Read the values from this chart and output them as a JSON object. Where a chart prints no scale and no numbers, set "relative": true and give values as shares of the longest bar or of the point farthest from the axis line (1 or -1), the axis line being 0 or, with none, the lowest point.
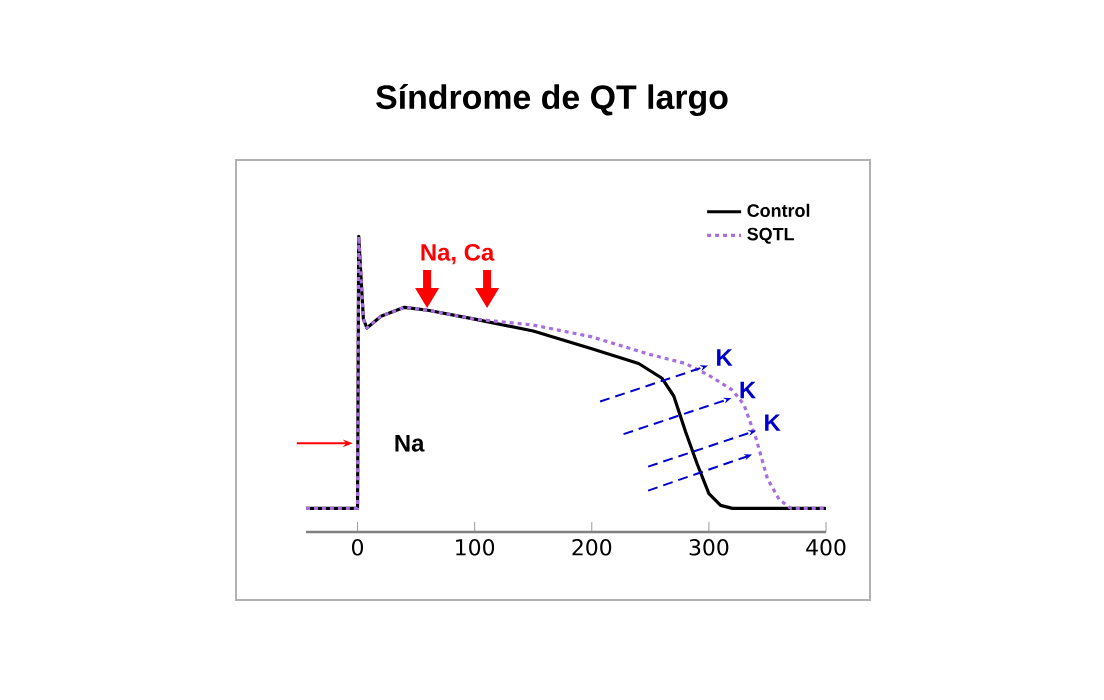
{
  "chart_data": {
    "type": "line",
    "title": "Síndrome de QT largo",
    "relative": true,
    "xlim": [
      -44,
      400
    ],
    "xticks": [
      0,
      100,
      200,
      300,
      400
    ],
    "legend": "top right",
    "series": [
      {
        "name": "Control",
        "color": "#000000",
        "line_style": "solid",
        "x": [
          -44,
          0,
          1,
          5,
          8,
          20,
          40,
          60,
          100,
          150,
          200,
          240,
          260,
          270,
          280,
          290,
          300,
          310,
          320,
          400
        ],
        "values": [
          0.08,
          0.08,
          1,
          0.72,
          0.69,
          0.73,
          0.76,
          0.75,
          0.72,
          0.68,
          0.62,
          0.57,
          0.52,
          0.46,
          0.34,
          0.23,
          0.13,
          0.09,
          0.08,
          0.08
        ]
      },
      {
        "name": "SQTL",
        "color": "#a66ee0",
        "line_style": "dotted",
        "x": [
          -44,
          0,
          1,
          5,
          8,
          20,
          40,
          60,
          100,
          150,
          200,
          250,
          280,
          300,
          320,
          330,
          340,
          350,
          360,
          370,
          400
        ],
        "values": [
          0.08,
          0.08,
          1,
          0.72,
          0.69,
          0.73,
          0.76,
          0.75,
          0.72,
          0.7,
          0.66,
          0.6,
          0.57,
          0.53,
          0.48,
          0.43,
          0.32,
          0.18,
          0.11,
          0.08,
          0.08
        ]
      }
    ],
    "annotations": [
      "Na, Ca",
      "Na",
      "K",
      "K",
      "K"
    ]
  }
}
